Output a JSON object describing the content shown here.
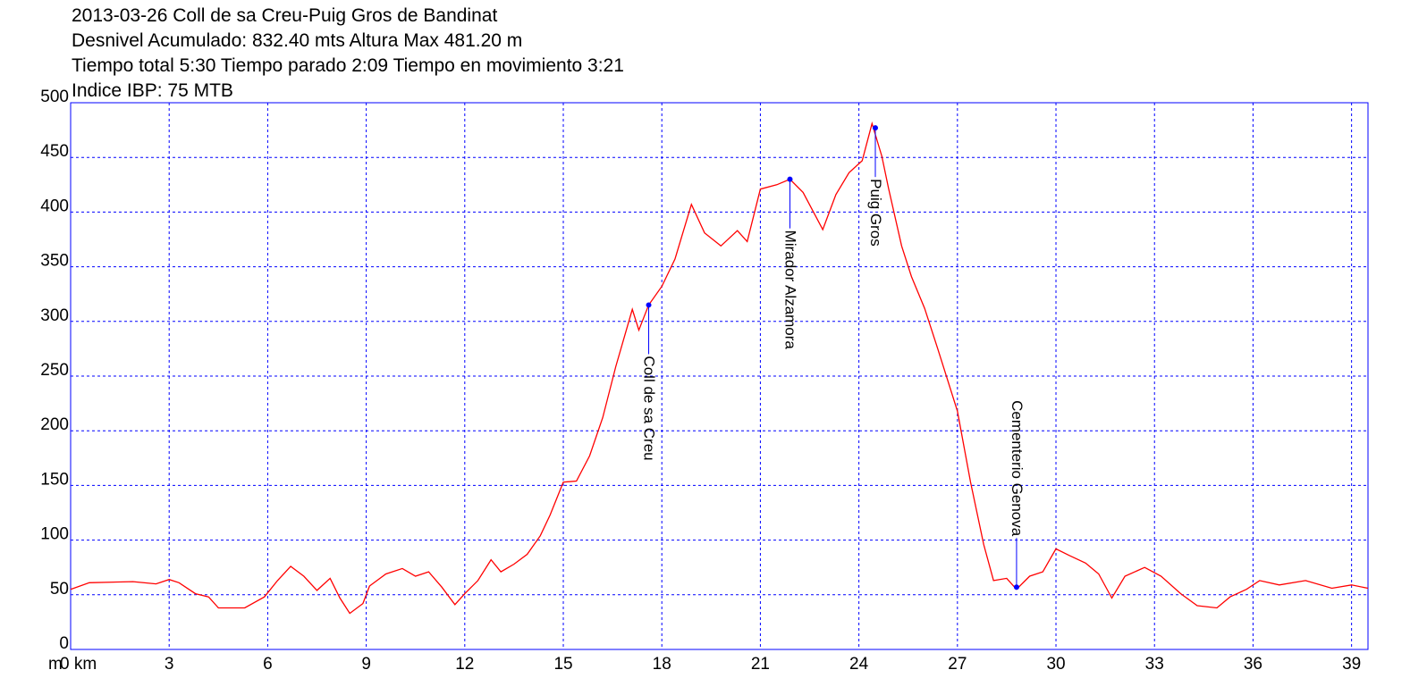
{
  "chart_data": {
    "type": "line",
    "title_lines": [
      "2013-03-26 Coll de sa Creu-Puig Gros de Bandinat",
      "Desnivel Acumulado: 832.40 mts  Altura Max 481.20 m",
      "Tiempo total 5:30 Tiempo parado 2:09 Tiempo en movimiento 3:21",
      "Indice IBP: 75 MTB"
    ],
    "y_label": "m",
    "x": [
      0,
      0.57,
      1.9,
      2.6,
      3.0,
      3.3,
      3.8,
      4.2,
      4.5,
      5.3,
      5.9,
      6.3,
      6.7,
      7.1,
      7.5,
      7.9,
      8.2,
      8.5,
      8.9,
      9.1,
      9.6,
      10.1,
      10.5,
      10.9,
      11.3,
      11.7,
      12.0,
      12.4,
      12.8,
      13.1,
      13.5,
      13.9,
      14.3,
      14.6,
      15.0,
      15.4,
      15.8,
      16.2,
      16.6,
      17.1,
      17.3,
      17.6,
      18.0,
      18.4,
      18.9,
      19.3,
      19.8,
      20.3,
      20.6,
      21.0,
      21.5,
      21.9,
      22.3,
      22.9,
      23.3,
      23.7,
      24.1,
      24.4,
      24.7,
      24.9,
      25.3,
      25.6,
      26.0,
      26.4,
      27.0,
      27.4,
      27.8,
      28.1,
      28.5,
      28.8,
      29.2,
      29.6,
      30.0,
      30.4,
      30.9,
      31.3,
      31.7,
      32.1,
      32.7,
      33.2,
      33.8,
      34.3,
      34.9,
      35.3,
      35.8,
      36.2,
      36.8,
      37.6,
      38.4,
      39.0,
      39.5
    ],
    "series": [
      {
        "color": "#ff0000",
        "values": [
          55,
          61,
          62,
          60,
          64,
          61,
          51,
          48,
          38,
          38,
          48,
          63,
          76,
          67,
          54,
          65,
          47,
          33,
          42,
          58,
          69,
          74,
          67,
          71,
          57,
          41,
          51,
          63,
          82,
          71,
          78,
          87,
          104,
          123,
          153,
          154,
          177,
          212,
          259,
          311,
          292,
          315,
          332,
          357,
          407,
          381,
          369,
          383,
          373,
          421,
          425,
          430,
          418,
          384,
          416,
          436,
          447,
          481,
          451,
          422,
          369,
          341,
          312,
          275,
          218,
          153,
          96,
          63,
          65,
          55,
          67,
          71,
          92,
          86,
          79,
          69,
          47,
          67,
          75,
          67,
          51,
          40,
          38,
          48,
          55,
          63,
          59,
          63,
          56,
          59,
          56
        ]
      }
    ],
    "annotations": [
      {
        "text": "Coll de sa Creu",
        "x": 17.6,
        "y": 315
      },
      {
        "text": "Mirador Alzamora",
        "x": 21.9,
        "y": 430
      },
      {
        "text": "Puig Gros",
        "x": 24.5,
        "y": 477
      },
      {
        "text": "Cementerio Genova",
        "x": 28.8,
        "y": 57
      }
    ],
    "annotation_color": "#0000ff",
    "xlim": [
      0,
      39.5
    ],
    "ylim": [
      0,
      500
    ],
    "xticks": [
      {
        "value": 0,
        "label": "0 km"
      },
      3,
      6,
      9,
      12,
      15,
      18,
      21,
      24,
      27,
      30,
      33,
      36,
      39
    ],
    "yticks": [
      0,
      50,
      100,
      150,
      200,
      250,
      300,
      350,
      400,
      450,
      500
    ],
    "grid": true,
    "grid_color": "#0000ff",
    "frame_color": "#0000ff"
  }
}
